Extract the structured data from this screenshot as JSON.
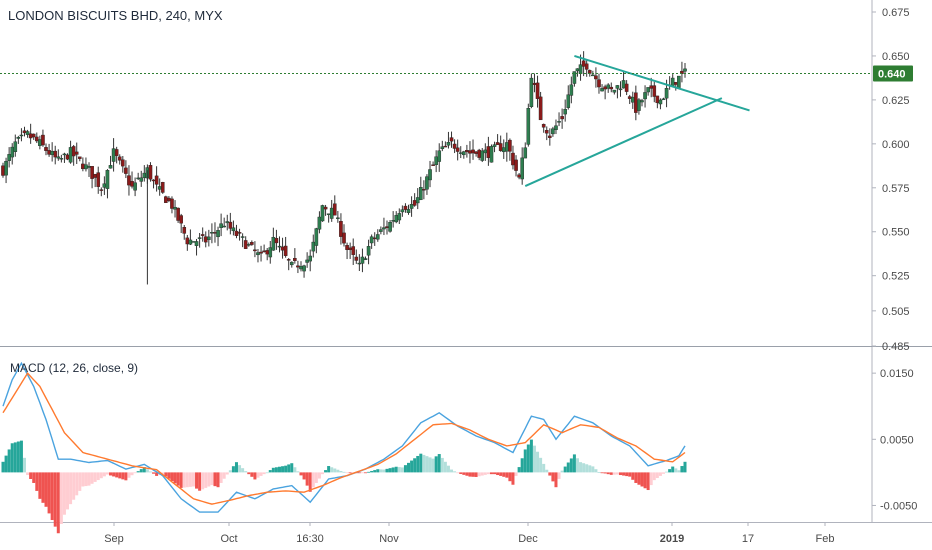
{
  "chart_title": "LONDON BISCUITS BHD, 240, MYX",
  "macd_title": "MACD (12, 26, close, 9)",
  "colors": {
    "up_candle": "#2e7d4f",
    "down_candle": "#8b1a1a",
    "wick": "#333333",
    "trendline": "#26a69a",
    "price_line": "#2e7d32",
    "macd_line": "#4aa3df",
    "signal_line": "#ff7a2f",
    "hist_pos_strong": "#26a69a",
    "hist_pos_weak": "#b2dfdb",
    "hist_neg_strong": "#ef5350",
    "hist_neg_weak": "#ffcdd2",
    "grid": "#e0e3eb"
  },
  "current_price_label": "0.640",
  "chart_data": [
    {
      "type": "candlestick",
      "title": "LONDON BISCUITS BHD, 240, MYX",
      "x_ticks": [
        "Sep",
        "Oct",
        "16:30",
        "Nov",
        "Dec",
        "2019",
        "17",
        "Feb"
      ],
      "y_ticks": [
        "0.675",
        "0.650",
        "0.625",
        "0.600",
        "0.575",
        "0.550",
        "0.525",
        "0.505",
        "0.485"
      ],
      "ylim": [
        0.485,
        0.675
      ],
      "current_price": 0.64,
      "series_close_anchors": [
        [
          0,
          0.585
        ],
        [
          4,
          0.6
        ],
        [
          8,
          0.605
        ],
        [
          12,
          0.6
        ],
        [
          18,
          0.59
        ],
        [
          22,
          0.595
        ],
        [
          28,
          0.585
        ],
        [
          32,
          0.575
        ],
        [
          36,
          0.595
        ],
        [
          42,
          0.575
        ],
        [
          47,
          0.585
        ],
        [
          50,
          0.575
        ],
        [
          55,
          0.565
        ],
        [
          60,
          0.545
        ],
        [
          66,
          0.545
        ],
        [
          72,
          0.555
        ],
        [
          78,
          0.545
        ],
        [
          84,
          0.535
        ],
        [
          88,
          0.545
        ],
        [
          94,
          0.53
        ],
        [
          100,
          0.535
        ],
        [
          104,
          0.565
        ],
        [
          108,
          0.56
        ],
        [
          112,
          0.54
        ],
        [
          116,
          0.53
        ],
        [
          120,
          0.545
        ],
        [
          126,
          0.555
        ],
        [
          130,
          0.565
        ],
        [
          134,
          0.565
        ],
        [
          138,
          0.58
        ],
        [
          142,
          0.595
        ],
        [
          146,
          0.6
        ],
        [
          152,
          0.595
        ],
        [
          158,
          0.595
        ],
        [
          164,
          0.6
        ],
        [
          168,
          0.58
        ],
        [
          170,
          0.6
        ],
        [
          172,
          0.64
        ],
        [
          175,
          0.615
        ],
        [
          178,
          0.605
        ],
        [
          182,
          0.615
        ],
        [
          186,
          0.64
        ],
        [
          190,
          0.645
        ],
        [
          194,
          0.635
        ],
        [
          198,
          0.63
        ],
        [
          202,
          0.635
        ],
        [
          206,
          0.62
        ],
        [
          210,
          0.63
        ],
        [
          214,
          0.625
        ],
        [
          218,
          0.635
        ],
        [
          222,
          0.64
        ]
      ],
      "trendlines": [
        {
          "from": [
            186,
            0.65
          ],
          "to": [
            243,
            0.619
          ]
        },
        {
          "from": [
            170,
            0.576
          ],
          "to": [
            234,
            0.626
          ]
        }
      ]
    },
    {
      "type": "line",
      "title": "MACD (12, 26, close, 9)",
      "y_ticks": [
        "0.0150",
        "0.0050",
        "-0.0050"
      ],
      "ylim": [
        -0.0075,
        0.0185
      ],
      "series": [
        {
          "name": "MACD",
          "anchors": [
            [
              0,
              0.01
            ],
            [
              3,
              0.014
            ],
            [
              6,
              0.0165
            ],
            [
              10,
              0.013
            ],
            [
              14,
              0.008
            ],
            [
              18,
              0.002
            ],
            [
              22,
              0.002
            ],
            [
              28,
              0.0015
            ],
            [
              34,
              0.0018
            ],
            [
              40,
              0.0005
            ],
            [
              46,
              0.0012
            ],
            [
              52,
              -0.0005
            ],
            [
              58,
              -0.004
            ],
            [
              64,
              -0.006
            ],
            [
              70,
              -0.006
            ],
            [
              76,
              -0.003
            ],
            [
              82,
              -0.004
            ],
            [
              88,
              -0.0025
            ],
            [
              94,
              -0.002
            ],
            [
              100,
              -0.0045
            ],
            [
              106,
              -0.001
            ],
            [
              112,
              -0.0005
            ],
            [
              118,
              0.0005
            ],
            [
              124,
              0.002
            ],
            [
              130,
              0.004
            ],
            [
              136,
              0.0075
            ],
            [
              142,
              0.009
            ],
            [
              148,
              0.007
            ],
            [
              154,
              0.0055
            ],
            [
              160,
              0.0045
            ],
            [
              166,
              0.003
            ],
            [
              172,
              0.0085
            ],
            [
              176,
              0.008
            ],
            [
              180,
              0.005
            ],
            [
              186,
              0.0085
            ],
            [
              192,
              0.0075
            ],
            [
              198,
              0.0055
            ],
            [
              204,
              0.004
            ],
            [
              210,
              0.001
            ],
            [
              216,
              0.0018
            ],
            [
              220,
              0.0025
            ],
            [
              222,
              0.004
            ]
          ]
        },
        {
          "name": "Signal",
          "anchors": [
            [
              0,
              0.009
            ],
            [
              4,
              0.012
            ],
            [
              8,
              0.015
            ],
            [
              12,
              0.013
            ],
            [
              16,
              0.0095
            ],
            [
              20,
              0.006
            ],
            [
              26,
              0.003
            ],
            [
              34,
              0.002
            ],
            [
              42,
              0.001
            ],
            [
              50,
              0.0004
            ],
            [
              56,
              -0.0018
            ],
            [
              62,
              -0.004
            ],
            [
              68,
              -0.0048
            ],
            [
              74,
              -0.0042
            ],
            [
              80,
              -0.0035
            ],
            [
              86,
              -0.003
            ],
            [
              92,
              -0.0028
            ],
            [
              98,
              -0.003
            ],
            [
              104,
              -0.002
            ],
            [
              110,
              -0.0008
            ],
            [
              116,
              0.0002
            ],
            [
              122,
              0.0012
            ],
            [
              128,
              0.0028
            ],
            [
              134,
              0.005
            ],
            [
              140,
              0.0072
            ],
            [
              146,
              0.0074
            ],
            [
              152,
              0.0064
            ],
            [
              158,
              0.005
            ],
            [
              164,
              0.004
            ],
            [
              170,
              0.0045
            ],
            [
              176,
              0.0072
            ],
            [
              182,
              0.006
            ],
            [
              188,
              0.0072
            ],
            [
              194,
              0.0068
            ],
            [
              200,
              0.0052
            ],
            [
              206,
              0.004
            ],
            [
              212,
              0.002
            ],
            [
              218,
              0.0016
            ],
            [
              222,
              0.003
            ]
          ]
        }
      ]
    }
  ]
}
